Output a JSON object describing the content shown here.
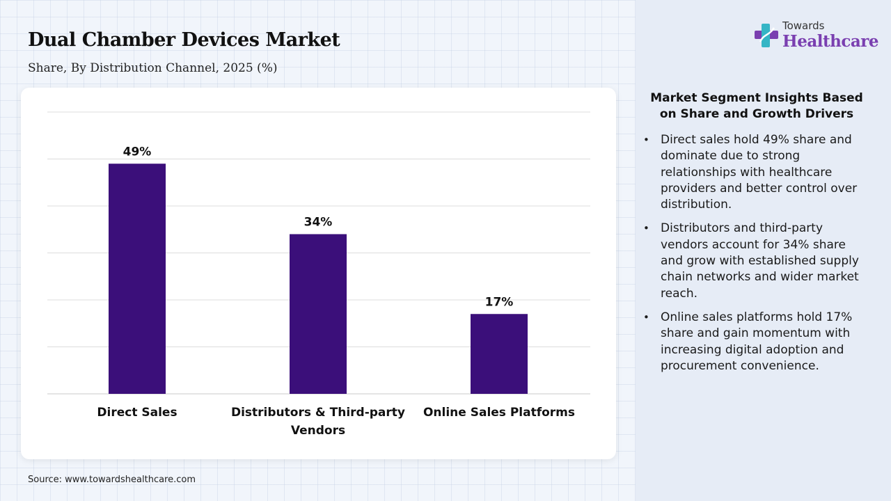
{
  "header": {
    "title": "Dual Chamber Devices Market",
    "subtitle": "Share, By Distribution Channel, 2025 (%)"
  },
  "logo": {
    "line1": "Towards",
    "line2": "Healthcare",
    "colors": {
      "purple": "#7a3fb0",
      "cross_teal": "#35b5c5",
      "cross_purple": "#7a3fb0"
    }
  },
  "chart_data": {
    "type": "bar",
    "categories": [
      "Direct Sales",
      "Distributors & Third-party Vendors",
      "Online Sales Platforms"
    ],
    "category_lines": [
      [
        "Direct Sales"
      ],
      [
        "Distributors & Third-party",
        "Vendors"
      ],
      [
        "Online Sales Platforms"
      ]
    ],
    "values": [
      49,
      34,
      17
    ],
    "data_labels": [
      "49%",
      "34%",
      "17%"
    ],
    "ylim": [
      0,
      60
    ],
    "grid": true,
    "bar_color": "#3b0f7a"
  },
  "insights": {
    "title": "Market Segment Insights Based on Share and Growth Drivers",
    "bullets": [
      "Direct sales hold 49% share and dominate due to strong relationships with healthcare providers and better control over distribution.",
      "Distributors and third-party vendors account for 34% share and grow with established supply chain networks and wider market reach.",
      "Online sales platforms hold 17% share and gain momentum with increasing digital adoption and procurement convenience."
    ]
  },
  "footer": {
    "source": "Source: www.towardshealthcare.com"
  }
}
